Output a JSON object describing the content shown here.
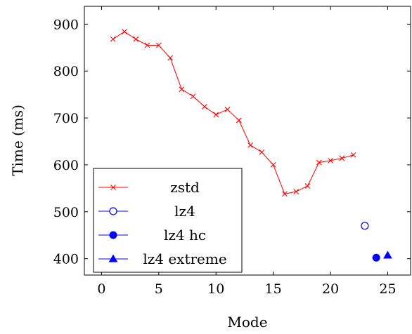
{
  "chart_data": {
    "type": "scatter",
    "xlabel": "Mode",
    "ylabel": "Time (ms)",
    "xlim": [
      -1.5,
      27
    ],
    "ylim": [
      365,
      938
    ],
    "xticks": [
      0,
      5,
      10,
      15,
      20,
      25
    ],
    "yticks": [
      400,
      500,
      600,
      700,
      800,
      900
    ],
    "xtick_labels": [
      "0",
      "5",
      "10",
      "15",
      "20",
      "25"
    ],
    "ytick_labels": [
      "400",
      "500",
      "600",
      "700",
      "800",
      "900"
    ],
    "grid": false,
    "legend_position": "bottom-left",
    "series": [
      {
        "name": "zstd",
        "color": "#ff0000",
        "marker": "x",
        "line": true,
        "x": [
          1,
          2,
          3,
          4,
          5,
          6,
          7,
          8,
          9,
          10,
          11,
          12,
          13,
          14,
          15,
          16,
          17,
          18,
          19,
          20,
          21,
          22
        ],
        "y": [
          868,
          884,
          868,
          855,
          855,
          828,
          761,
          746,
          724,
          707,
          718,
          695,
          642,
          627,
          600,
          538,
          543,
          555,
          605,
          609,
          614,
          621
        ]
      },
      {
        "name": "lz4",
        "color": "#0000ff",
        "marker": "open-circle",
        "line": false,
        "x": [
          23
        ],
        "y": [
          470
        ]
      },
      {
        "name": "lz4 hc",
        "color": "#0000ff",
        "marker": "filled-circle",
        "line": false,
        "x": [
          24
        ],
        "y": [
          402
        ]
      },
      {
        "name": "lz4 extreme",
        "color": "#0000ff",
        "marker": "triangle",
        "line": false,
        "x": [
          25
        ],
        "y": [
          407
        ]
      }
    ]
  }
}
